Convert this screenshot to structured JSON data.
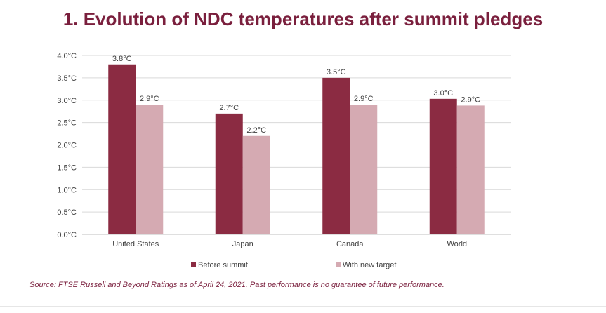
{
  "title": "1. Evolution of NDC temperatures after summit pledges",
  "source": "Source: FTSE Russell and Beyond Ratings as of April 24, 2021. Past performance is no guarantee of future performance.",
  "colors": {
    "title": "#7a1f3d",
    "before": "#8b2b42",
    "after": "#d5aab2",
    "grid": "#d9d9d9"
  },
  "chart_data": {
    "type": "bar",
    "categories": [
      "United States",
      "Japan",
      "Canada",
      "World"
    ],
    "series": [
      {
        "name": "Before summit",
        "values": [
          3.8,
          2.7,
          3.5,
          3.03
        ],
        "labels": [
          "3.8°C",
          "2.7°C",
          "3.5°C",
          "3.0°C"
        ]
      },
      {
        "name": "With new target",
        "values": [
          2.9,
          2.2,
          2.9,
          2.88
        ],
        "labels": [
          "2.9°C",
          "2.2°C",
          "2.9°C",
          "2.9°C"
        ]
      }
    ],
    "ylim": [
      0,
      4
    ],
    "yticks": [
      "0.0°C",
      "0.5°C",
      "1.0°C",
      "1.5°C",
      "2.0°C",
      "2.5°C",
      "3.0°C",
      "3.5°C",
      "4.0°C"
    ],
    "ytick_values": [
      0,
      0.5,
      1,
      1.5,
      2,
      2.5,
      3,
      3.5,
      4
    ],
    "grid": true,
    "legend": "bottom-center"
  }
}
